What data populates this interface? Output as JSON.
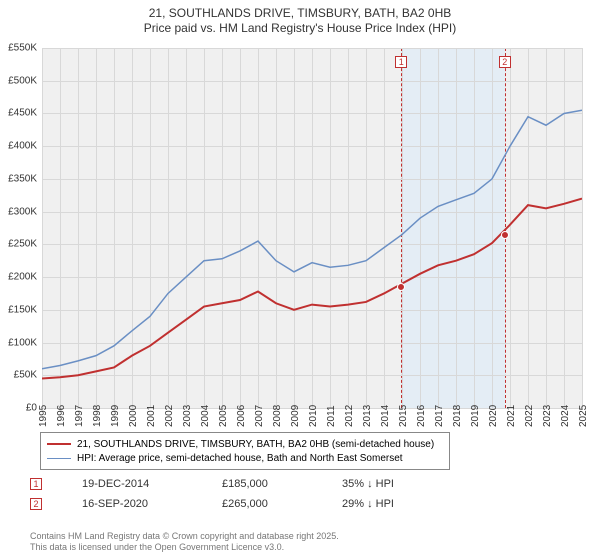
{
  "title": "21, SOUTHLANDS DRIVE, TIMSBURY, BATH, BA2 0HB",
  "subtitle": "Price paid vs. HM Land Registry's House Price Index (HPI)",
  "chart": {
    "type": "line",
    "background_color": "#f0f0f0",
    "grid_color": "#d8d8d8",
    "ylim": [
      0,
      550
    ],
    "ytick_step": 50,
    "yticks": [
      "£0",
      "£50K",
      "£100K",
      "£150K",
      "£200K",
      "£250K",
      "£300K",
      "£350K",
      "£400K",
      "£450K",
      "£500K",
      "£550K"
    ],
    "xyears": [
      1995,
      1996,
      1997,
      1998,
      1999,
      2000,
      2001,
      2002,
      2003,
      2004,
      2005,
      2006,
      2007,
      2008,
      2009,
      2010,
      2011,
      2012,
      2013,
      2014,
      2015,
      2016,
      2017,
      2018,
      2019,
      2020,
      2021,
      2022,
      2023,
      2024,
      2025
    ],
    "shade": {
      "start_year": 2014.96,
      "end_year": 2020.71,
      "color": "#e4edf5",
      "border_color": "#c03030"
    },
    "series": [
      {
        "name": "price_paid",
        "color": "#c03030",
        "width": 2,
        "points": [
          [
            1995,
            45
          ],
          [
            1996,
            47
          ],
          [
            1997,
            50
          ],
          [
            1998,
            56
          ],
          [
            1999,
            62
          ],
          [
            2000,
            80
          ],
          [
            2001,
            95
          ],
          [
            2002,
            115
          ],
          [
            2003,
            135
          ],
          [
            2004,
            155
          ],
          [
            2005,
            160
          ],
          [
            2006,
            165
          ],
          [
            2007,
            178
          ],
          [
            2008,
            160
          ],
          [
            2009,
            150
          ],
          [
            2010,
            158
          ],
          [
            2011,
            155
          ],
          [
            2012,
            158
          ],
          [
            2013,
            162
          ],
          [
            2014,
            175
          ],
          [
            2015,
            190
          ],
          [
            2016,
            205
          ],
          [
            2017,
            218
          ],
          [
            2018,
            225
          ],
          [
            2019,
            235
          ],
          [
            2020,
            252
          ],
          [
            2021,
            280
          ],
          [
            2022,
            310
          ],
          [
            2023,
            305
          ],
          [
            2024,
            312
          ],
          [
            2025,
            320
          ]
        ]
      },
      {
        "name": "hpi",
        "color": "#6a8fc4",
        "width": 1.5,
        "points": [
          [
            1995,
            60
          ],
          [
            1996,
            65
          ],
          [
            1997,
            72
          ],
          [
            1998,
            80
          ],
          [
            1999,
            95
          ],
          [
            2000,
            118
          ],
          [
            2001,
            140
          ],
          [
            2002,
            175
          ],
          [
            2003,
            200
          ],
          [
            2004,
            225
          ],
          [
            2005,
            228
          ],
          [
            2006,
            240
          ],
          [
            2007,
            255
          ],
          [
            2008,
            225
          ],
          [
            2009,
            208
          ],
          [
            2010,
            222
          ],
          [
            2011,
            215
          ],
          [
            2012,
            218
          ],
          [
            2013,
            225
          ],
          [
            2014,
            245
          ],
          [
            2015,
            265
          ],
          [
            2016,
            290
          ],
          [
            2017,
            308
          ],
          [
            2018,
            318
          ],
          [
            2019,
            328
          ],
          [
            2020,
            350
          ],
          [
            2021,
            400
          ],
          [
            2022,
            445
          ],
          [
            2023,
            432
          ],
          [
            2024,
            450
          ],
          [
            2025,
            455
          ]
        ]
      }
    ],
    "markers": [
      {
        "label": "1",
        "year": 2014.96,
        "value": 185,
        "box_top": 8
      },
      {
        "label": "2",
        "year": 2020.71,
        "value": 265,
        "box_top": 8
      }
    ]
  },
  "legend": [
    {
      "color": "#c03030",
      "width": 2,
      "text": "21, SOUTHLANDS DRIVE, TIMSBURY, BATH, BA2 0HB (semi-detached house)"
    },
    {
      "color": "#6a8fc4",
      "width": 1.5,
      "text": "HPI: Average price, semi-detached house, Bath and North East Somerset"
    }
  ],
  "events": [
    {
      "label": "1",
      "date": "19-DEC-2014",
      "price": "£185,000",
      "delta": "35% ↓ HPI"
    },
    {
      "label": "2",
      "date": "16-SEP-2020",
      "price": "£265,000",
      "delta": "29% ↓ HPI"
    }
  ],
  "footer1": "Contains HM Land Registry data © Crown copyright and database right 2025.",
  "footer2": "This data is licensed under the Open Government Licence v3.0."
}
